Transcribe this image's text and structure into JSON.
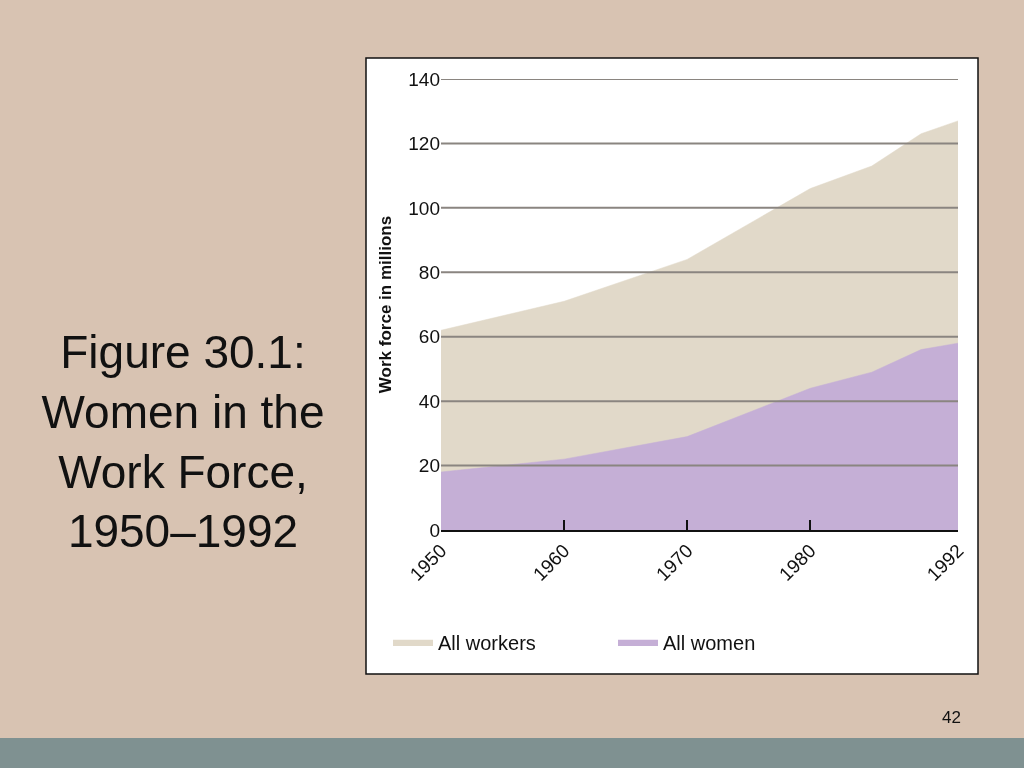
{
  "chart_data": {
    "type": "area",
    "title": "Figure 30.1:\nWomen in the\nWork Force,\n1950–1992",
    "ylabel": "Work force in millions",
    "x": [
      1950,
      1960,
      1970,
      1980,
      1985,
      1989,
      1992
    ],
    "series": [
      {
        "name": "All workers",
        "color": "#e1d9c9",
        "values": [
          62,
          71,
          84,
          106,
          113,
          123,
          127
        ]
      },
      {
        "name": "All women",
        "color": "#c5afd6",
        "values": [
          18,
          22,
          29,
          44,
          49,
          56,
          58
        ]
      }
    ],
    "xlim": [
      1950,
      1992
    ],
    "xticks": [
      1950,
      1960,
      1970,
      1980,
      1992
    ],
    "ylim": [
      0,
      140
    ],
    "yticks": [
      0,
      20,
      40,
      60,
      80,
      100,
      120,
      140
    ],
    "grid": "y",
    "legend": "bottom",
    "annotations": [
      "42"
    ]
  }
}
